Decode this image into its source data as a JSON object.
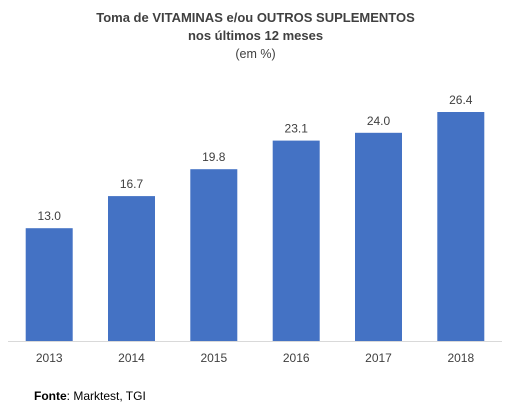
{
  "chart": {
    "title_line1": "Toma de VITAMINAS e/ou OUTROS SUPLEMENTOS",
    "title_line2": "nos últimos 12 meses",
    "title_line3": "(em %)"
  },
  "source": {
    "label": "Fonte",
    "text": ": Marktest, TGI"
  },
  "colors": {
    "bar": "#4472C4",
    "axis": "#D9D9D9",
    "text": "#404040"
  },
  "chart_data": {
    "type": "bar",
    "title": "Toma de VITAMINAS e/ou OUTROS SUPLEMENTOS nos últimos 12 meses",
    "subtitle": "(em %)",
    "categories": [
      "2013",
      "2014",
      "2015",
      "2016",
      "2017",
      "2018"
    ],
    "values": [
      13.0,
      16.7,
      19.8,
      23.1,
      24.0,
      26.4
    ],
    "value_labels": [
      "13.0",
      "16.7",
      "19.8",
      "23.1",
      "24.0",
      "26.4"
    ],
    "xlabel": "",
    "ylabel": "",
    "ylim": [
      0,
      26.4
    ],
    "grid": false,
    "legend": "none"
  }
}
